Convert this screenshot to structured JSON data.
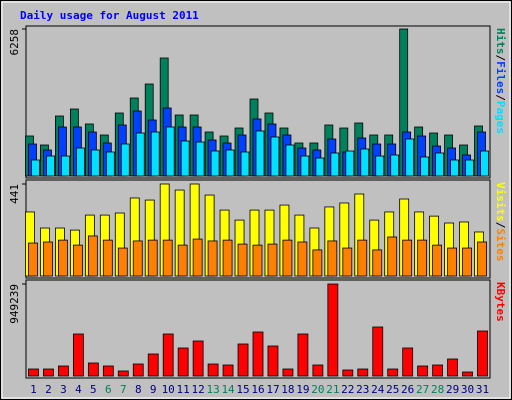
{
  "chart_data": [
    {
      "type": "bar",
      "title": "Daily usage for August 2011",
      "ylim": [
        0,
        6258
      ],
      "yticks": [
        6258
      ],
      "legend_separator": "/",
      "series": [
        {
          "name": "Hits",
          "color": "#00805c",
          "values": [
            1703,
            1320,
            2554,
            2852,
            2214,
            1745,
            2682,
            3320,
            3916,
            5023,
            2597,
            2597,
            1873,
            1703,
            2043,
            3278,
            2682,
            2043,
            1405,
            1405,
            2171,
            2043,
            2256,
            1745,
            1745,
            6258,
            2086,
            1830,
            1745,
            1320,
            2129
          ]
        },
        {
          "name": "Files",
          "color": "#0040ff",
          "values": [
            1362,
            1107,
            2086,
            2086,
            1873,
            1405,
            2171,
            2767,
            2384,
            2895,
            2086,
            2086,
            1533,
            1405,
            1745,
            2427,
            2214,
            1745,
            1192,
            1107,
            1575,
            1022,
            1618,
            1362,
            1362,
            1873,
            1703,
            1277,
            1192,
            894,
            1873
          ]
        },
        {
          "name": "Pages",
          "color": "#00e0ff",
          "values": [
            681,
            851,
            851,
            1192,
            1107,
            1022,
            1362,
            1830,
            1873,
            2086,
            1490,
            1447,
            1064,
            1107,
            1022,
            1916,
            1660,
            1320,
            851,
            766,
            979,
            1064,
            1149,
            851,
            894,
            1575,
            809,
            979,
            681,
            681,
            1064
          ]
        }
      ]
    },
    {
      "type": "bar",
      "ylim": [
        0,
        441
      ],
      "yticks": [
        441
      ],
      "legend_separator": "/",
      "series": [
        {
          "name": "Visits",
          "color": "#ffff00",
          "values": [
            307,
            230,
            230,
            220,
            292,
            292,
            302,
            374,
            364,
            441,
            412,
            441,
            388,
            316,
            268,
            316,
            316,
            340,
            292,
            230,
            331,
            350,
            393,
            268,
            307,
            369,
            307,
            287,
            254,
            259,
            211
          ]
        },
        {
          "name": "Sites",
          "color": "#ff8000",
          "values": [
            158,
            163,
            172,
            148,
            192,
            172,
            134,
            168,
            172,
            172,
            148,
            177,
            168,
            172,
            153,
            148,
            153,
            172,
            163,
            125,
            168,
            134,
            172,
            125,
            187,
            172,
            172,
            148,
            134,
            134,
            163
          ]
        }
      ]
    },
    {
      "type": "bar",
      "ylim": [
        0,
        949239
      ],
      "yticks": [
        949239
      ],
      "categories": [
        "1",
        "2",
        "3",
        "4",
        "5",
        "6",
        "7",
        "8",
        "9",
        "10",
        "11",
        "12",
        "13",
        "14",
        "15",
        "16",
        "17",
        "18",
        "19",
        "20",
        "21",
        "22",
        "23",
        "24",
        "25",
        "26",
        "27",
        "28",
        "29",
        "30",
        "31"
      ],
      "category_colors": [
        "#000080",
        "#000080",
        "#000080",
        "#000080",
        "#000080",
        "#00805c",
        "#00805c",
        "#000080",
        "#000080",
        "#000080",
        "#000080",
        "#000080",
        "#00805c",
        "#00805c",
        "#000080",
        "#000080",
        "#000080",
        "#000080",
        "#000080",
        "#00805c",
        "#00805c",
        "#000080",
        "#000080",
        "#000080",
        "#000080",
        "#000080",
        "#00805c",
        "#00805c",
        "#000080",
        "#000080",
        "#000080"
      ],
      "series": [
        {
          "name": "KBytes",
          "color": "#ff0000",
          "values": [
            72226,
            72226,
            103180,
            433356,
            134134,
            103180,
            51590,
            123816,
            226996,
            433356,
            288904,
            361130,
            123816,
            113498,
            330176,
            453992,
            309540,
            72226,
            433356,
            113498,
            949239,
            61908,
            72226,
            505582,
            72226,
            288904,
            103180,
            113498,
            175406,
            41272,
            464310
          ]
        }
      ]
    }
  ]
}
